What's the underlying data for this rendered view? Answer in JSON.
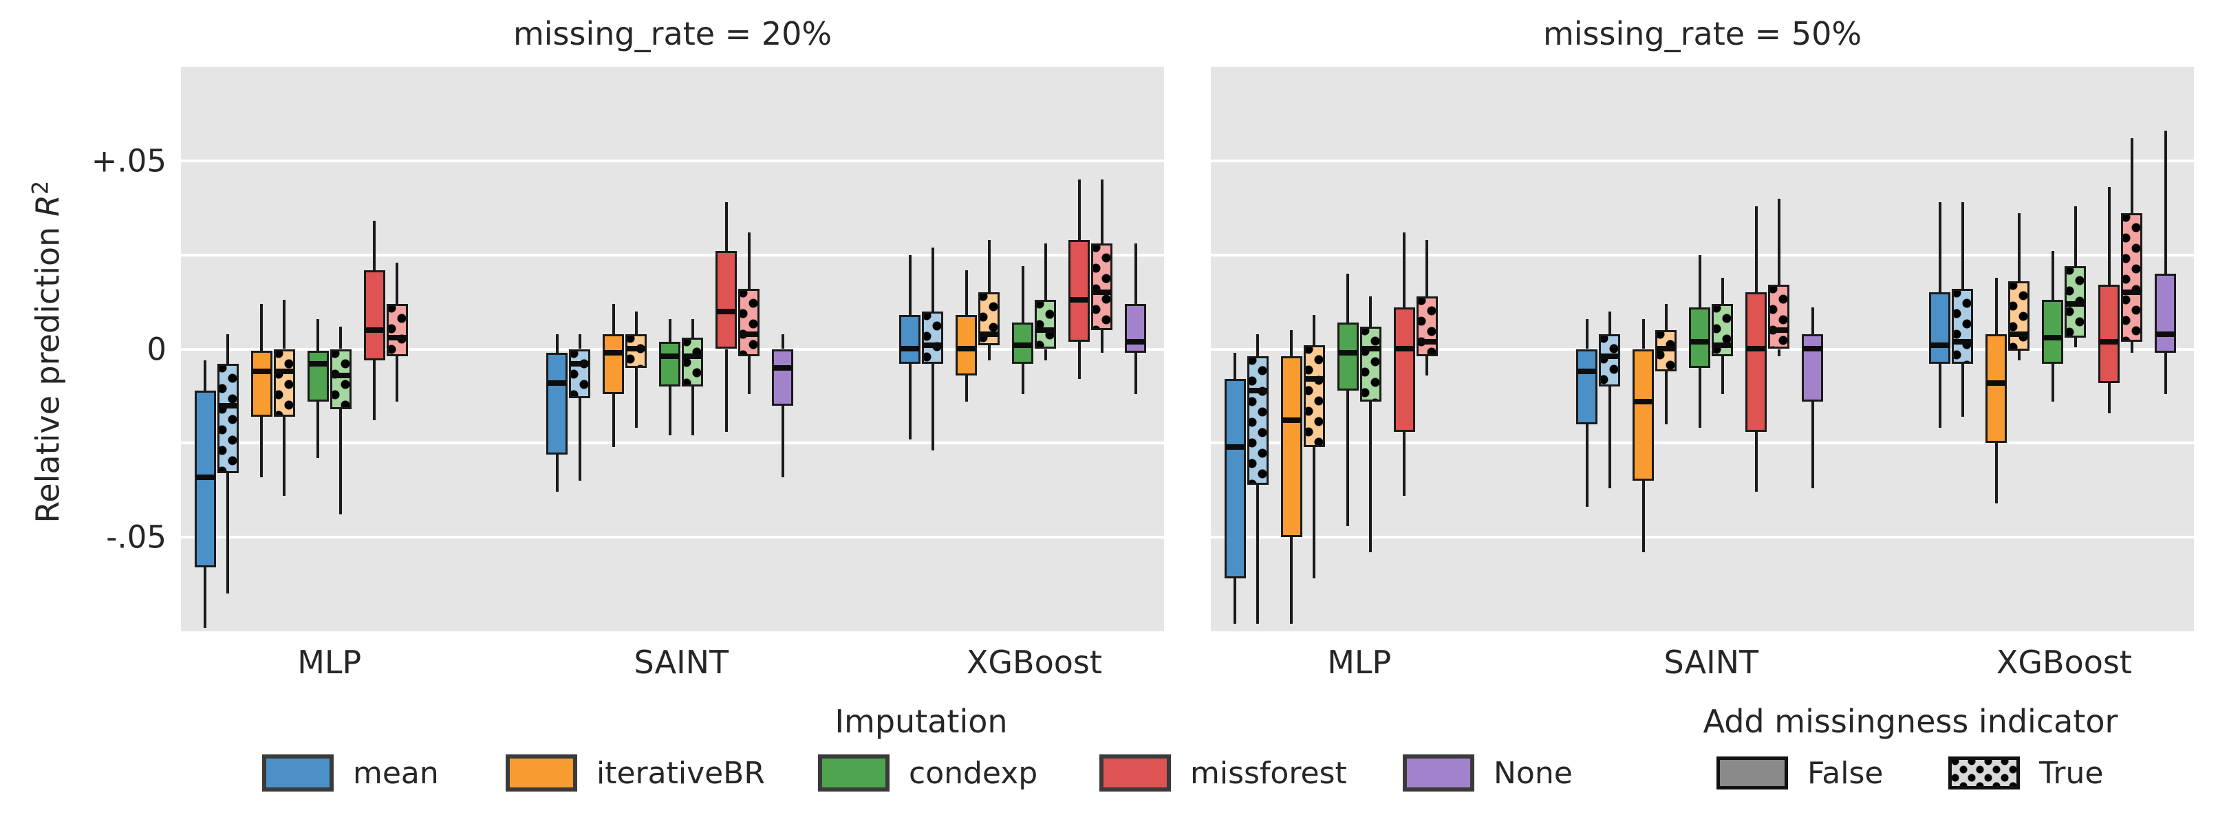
{
  "chart_data": {
    "type": "boxplot",
    "ylabel_prefix": "Relative prediction ",
    "ylabel_var": "R",
    "ylabel_sup": "2",
    "ylim": [
      -0.075,
      0.075
    ],
    "yticks": [
      {
        "label": "+.05",
        "value": 0.05
      },
      {
        "label": "0",
        "value": 0
      },
      {
        "label": "-.05",
        "value": -0.05
      }
    ],
    "gridlines": [
      0.05,
      0.025,
      0,
      -0.025,
      -0.05
    ],
    "imputation_order": [
      "mean",
      "iterativeBR",
      "condexp",
      "missforest",
      "None"
    ],
    "facets": [
      {
        "title": "missing_rate = 20%",
        "groups": [
          {
            "model": "MLP",
            "boxes": [
              {
                "imputation": "mean",
                "indicator": false,
                "stats": [
                  -0.074,
                  -0.058,
                  -0.034,
                  -0.011,
                  -0.003
                ]
              },
              {
                "imputation": "mean",
                "indicator": true,
                "stats": [
                  -0.065,
                  -0.033,
                  -0.015,
                  -0.004,
                  0.004
                ]
              },
              {
                "imputation": "iterativeBR",
                "indicator": false,
                "stats": [
                  -0.034,
                  -0.018,
                  -0.006,
                  -0.0005,
                  0.012
                ]
              },
              {
                "imputation": "iterativeBR",
                "indicator": true,
                "stats": [
                  -0.039,
                  -0.018,
                  -0.006,
                  0.0,
                  0.013
                ]
              },
              {
                "imputation": "condexp",
                "indicator": false,
                "stats": [
                  -0.029,
                  -0.014,
                  -0.004,
                  -0.0005,
                  0.008
                ]
              },
              {
                "imputation": "condexp",
                "indicator": true,
                "stats": [
                  -0.044,
                  -0.016,
                  -0.007,
                  0.0,
                  0.006
                ]
              },
              {
                "imputation": "missforest",
                "indicator": false,
                "stats": [
                  -0.019,
                  -0.003,
                  0.005,
                  0.021,
                  0.034
                ]
              },
              {
                "imputation": "missforest",
                "indicator": true,
                "stats": [
                  -0.014,
                  -0.002,
                  0.003,
                  0.012,
                  0.023
                ]
              }
            ]
          },
          {
            "model": "SAINT",
            "boxes": [
              {
                "imputation": "mean",
                "indicator": false,
                "stats": [
                  -0.038,
                  -0.028,
                  -0.009,
                  -0.001,
                  0.004
                ]
              },
              {
                "imputation": "mean",
                "indicator": true,
                "stats": [
                  -0.035,
                  -0.013,
                  -0.004,
                  0.0,
                  0.004
                ]
              },
              {
                "imputation": "iterativeBR",
                "indicator": false,
                "stats": [
                  -0.026,
                  -0.012,
                  -0.001,
                  0.004,
                  0.012
                ]
              },
              {
                "imputation": "iterativeBR",
                "indicator": true,
                "stats": [
                  -0.021,
                  -0.005,
                  0.0,
                  0.004,
                  0.01
                ]
              },
              {
                "imputation": "condexp",
                "indicator": false,
                "stats": [
                  -0.023,
                  -0.01,
                  -0.002,
                  0.002,
                  0.008
                ]
              },
              {
                "imputation": "condexp",
                "indicator": true,
                "stats": [
                  -0.023,
                  -0.01,
                  -0.002,
                  0.003,
                  0.008
                ]
              },
              {
                "imputation": "missforest",
                "indicator": false,
                "stats": [
                  -0.022,
                  0.0,
                  0.01,
                  0.026,
                  0.039
                ]
              },
              {
                "imputation": "missforest",
                "indicator": true,
                "stats": [
                  -0.012,
                  -0.002,
                  0.004,
                  0.016,
                  0.031
                ]
              },
              {
                "imputation": "None",
                "indicator": false,
                "stats": [
                  -0.034,
                  -0.015,
                  -0.005,
                  0.0,
                  0.004
                ]
              }
            ]
          },
          {
            "model": "XGBoost",
            "boxes": [
              {
                "imputation": "mean",
                "indicator": false,
                "stats": [
                  -0.024,
                  -0.004,
                  0.0,
                  0.009,
                  0.025
                ]
              },
              {
                "imputation": "mean",
                "indicator": true,
                "stats": [
                  -0.027,
                  -0.004,
                  0.001,
                  0.01,
                  0.027
                ]
              },
              {
                "imputation": "iterativeBR",
                "indicator": false,
                "stats": [
                  -0.014,
                  -0.007,
                  0.0,
                  0.009,
                  0.021
                ]
              },
              {
                "imputation": "iterativeBR",
                "indicator": true,
                "stats": [
                  -0.003,
                  0.001,
                  0.004,
                  0.015,
                  0.029
                ]
              },
              {
                "imputation": "condexp",
                "indicator": false,
                "stats": [
                  -0.012,
                  -0.004,
                  0.001,
                  0.007,
                  0.022
                ]
              },
              {
                "imputation": "condexp",
                "indicator": true,
                "stats": [
                  -0.003,
                  0.0,
                  0.005,
                  0.013,
                  0.028
                ]
              },
              {
                "imputation": "missforest",
                "indicator": false,
                "stats": [
                  -0.008,
                  0.002,
                  0.013,
                  0.029,
                  0.045
                ]
              },
              {
                "imputation": "missforest",
                "indicator": true,
                "stats": [
                  -0.001,
                  0.005,
                  0.015,
                  0.028,
                  0.045
                ]
              },
              {
                "imputation": "None",
                "indicator": false,
                "stats": [
                  -0.012,
                  -0.001,
                  0.002,
                  0.012,
                  0.028
                ]
              }
            ]
          }
        ]
      },
      {
        "title": "missing_rate = 50%",
        "groups": [
          {
            "model": "MLP",
            "boxes": [
              {
                "imputation": "mean",
                "indicator": false,
                "stats": [
                  -0.073,
                  -0.061,
                  -0.026,
                  -0.008,
                  -0.001
                ]
              },
              {
                "imputation": "mean",
                "indicator": true,
                "stats": [
                  -0.073,
                  -0.036,
                  -0.011,
                  -0.002,
                  0.004
                ]
              },
              {
                "imputation": "iterativeBR",
                "indicator": false,
                "stats": [
                  -0.073,
                  -0.05,
                  -0.019,
                  -0.002,
                  0.005
                ]
              },
              {
                "imputation": "iterativeBR",
                "indicator": true,
                "stats": [
                  -0.061,
                  -0.026,
                  -0.008,
                  0.001,
                  0.009
                ]
              },
              {
                "imputation": "condexp",
                "indicator": false,
                "stats": [
                  -0.047,
                  -0.011,
                  -0.001,
                  0.007,
                  0.02
                ]
              },
              {
                "imputation": "condexp",
                "indicator": true,
                "stats": [
                  -0.054,
                  -0.014,
                  0.0,
                  0.006,
                  0.014
                ]
              },
              {
                "imputation": "missforest",
                "indicator": false,
                "stats": [
                  -0.039,
                  -0.022,
                  0.0,
                  0.011,
                  0.031
                ]
              },
              {
                "imputation": "missforest",
                "indicator": true,
                "stats": [
                  -0.007,
                  -0.002,
                  0.002,
                  0.014,
                  0.029
                ]
              }
            ]
          },
          {
            "model": "SAINT",
            "boxes": [
              {
                "imputation": "mean",
                "indicator": false,
                "stats": [
                  -0.042,
                  -0.02,
                  -0.006,
                  0.0,
                  0.008
                ]
              },
              {
                "imputation": "mean",
                "indicator": true,
                "stats": [
                  -0.037,
                  -0.01,
                  -0.002,
                  0.004,
                  0.01
                ]
              },
              {
                "imputation": "iterativeBR",
                "indicator": false,
                "stats": [
                  -0.054,
                  -0.035,
                  -0.014,
                  0.0,
                  0.008
                ]
              },
              {
                "imputation": "iterativeBR",
                "indicator": true,
                "stats": [
                  -0.02,
                  -0.006,
                  0.0,
                  0.005,
                  0.012
                ]
              },
              {
                "imputation": "condexp",
                "indicator": false,
                "stats": [
                  -0.021,
                  -0.005,
                  0.002,
                  0.011,
                  0.025
                ]
              },
              {
                "imputation": "condexp",
                "indicator": true,
                "stats": [
                  -0.012,
                  -0.002,
                  0.001,
                  0.012,
                  0.019
                ]
              },
              {
                "imputation": "missforest",
                "indicator": false,
                "stats": [
                  -0.038,
                  -0.022,
                  0.0,
                  0.015,
                  0.038
                ]
              },
              {
                "imputation": "missforest",
                "indicator": true,
                "stats": [
                  -0.002,
                  0.0,
                  0.005,
                  0.017,
                  0.04
                ]
              },
              {
                "imputation": "None",
                "indicator": false,
                "stats": [
                  -0.037,
                  -0.014,
                  0.0,
                  0.004,
                  0.011
                ]
              }
            ]
          },
          {
            "model": "XGBoost",
            "boxes": [
              {
                "imputation": "mean",
                "indicator": false,
                "stats": [
                  -0.021,
                  -0.004,
                  0.001,
                  0.015,
                  0.039
                ]
              },
              {
                "imputation": "mean",
                "indicator": true,
                "stats": [
                  -0.018,
                  -0.004,
                  0.002,
                  0.016,
                  0.039
                ]
              },
              {
                "imputation": "iterativeBR",
                "indicator": false,
                "stats": [
                  -0.041,
                  -0.025,
                  -0.009,
                  0.004,
                  0.019
                ]
              },
              {
                "imputation": "iterativeBR",
                "indicator": true,
                "stats": [
                  -0.003,
                  -0.0005,
                  0.004,
                  0.018,
                  0.036
                ]
              },
              {
                "imputation": "condexp",
                "indicator": false,
                "stats": [
                  -0.014,
                  -0.004,
                  0.003,
                  0.013,
                  0.026
                ]
              },
              {
                "imputation": "condexp",
                "indicator": true,
                "stats": [
                  0.0005,
                  0.003,
                  0.012,
                  0.022,
                  0.038
                ]
              },
              {
                "imputation": "missforest",
                "indicator": false,
                "stats": [
                  -0.017,
                  -0.009,
                  0.002,
                  0.017,
                  0.043
                ]
              },
              {
                "imputation": "missforest",
                "indicator": true,
                "stats": [
                  -0.001,
                  0.002,
                  0.015,
                  0.036,
                  0.056
                ]
              },
              {
                "imputation": "None",
                "indicator": false,
                "stats": [
                  -0.012,
                  -0.001,
                  0.004,
                  0.02,
                  0.058
                ]
              }
            ]
          }
        ]
      }
    ]
  },
  "colors": {
    "panel_bg": "#e5e5e5",
    "gridline": "#ffffff",
    "text": "#262626",
    "box_edge": "#1a1a1a",
    "mean": {
      "solid": "#4b90c6",
      "dotted": "#a9cbe3"
    },
    "iterativeBR": {
      "solid": "#f89c31",
      "dotted": "#fcca92"
    },
    "condexp": {
      "solid": "#4fa44f",
      "dotted": "#a7d7a1"
    },
    "missforest": {
      "solid": "#dd5452",
      "dotted": "#f3a3a1"
    },
    "None": {
      "solid": "#a283cb",
      "dotted": "#cfbce4"
    },
    "indicator_false": "#8a8a8a",
    "indicator_true": "#d9d9d9"
  },
  "legend": {
    "imputation_title": "Imputation",
    "indicator_title": "Add missingness indicator",
    "imputation_items": [
      {
        "label": "mean",
        "key": "mean"
      },
      {
        "label": "iterativeBR",
        "key": "iterativeBR"
      },
      {
        "label": "condexp",
        "key": "condexp"
      },
      {
        "label": "missforest",
        "key": "missforest"
      },
      {
        "label": "None",
        "key": "None"
      }
    ],
    "indicator_items": [
      {
        "label": "False",
        "dotted": false
      },
      {
        "label": "True",
        "dotted": true
      }
    ]
  }
}
